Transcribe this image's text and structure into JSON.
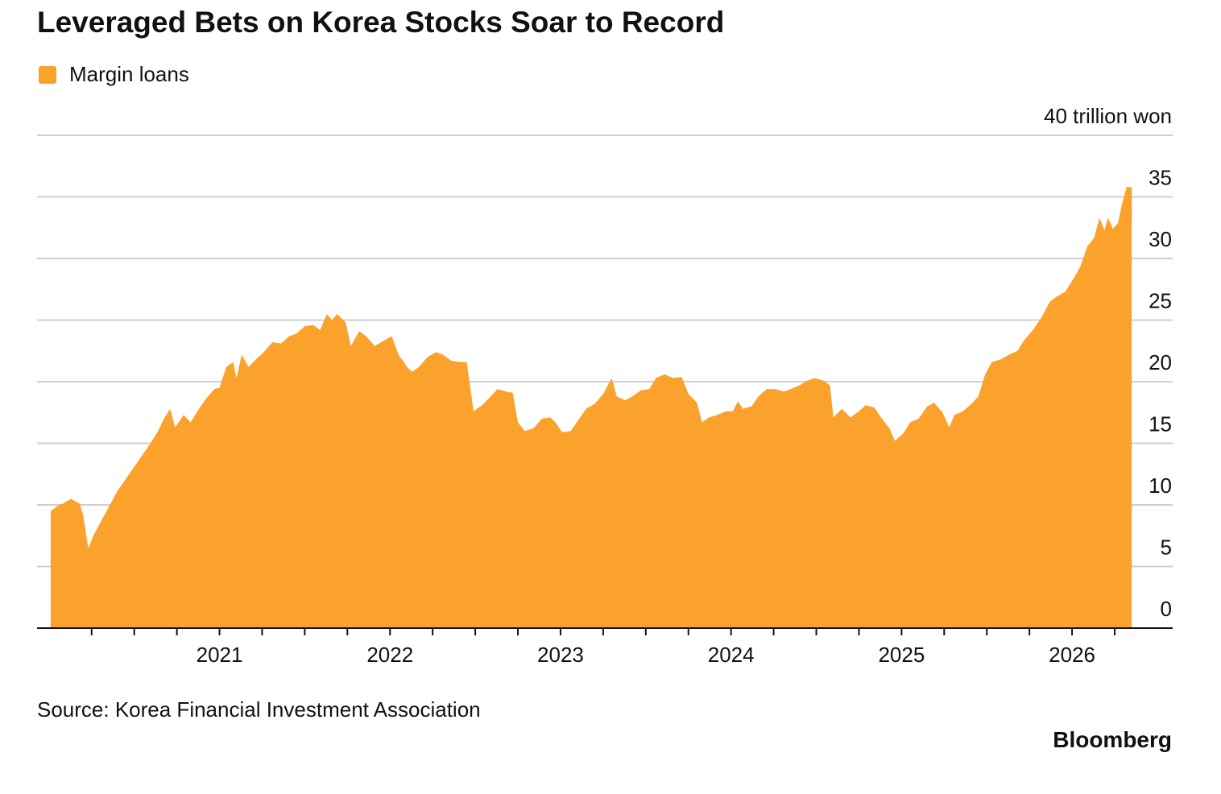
{
  "chart_data": {
    "type": "area",
    "title": "Leveraged Bets on Korea Stocks Soar to Record",
    "source": "Source: Korea Financial Investment Association",
    "brand": "Bloomberg",
    "x": [
      2020.01,
      2020.05,
      2020.08,
      2020.13,
      2020.18,
      2020.2,
      2020.23,
      2020.26,
      2020.31,
      2020.35,
      2020.4,
      2020.45,
      2020.49,
      2020.54,
      2020.59,
      2020.64,
      2020.67,
      2020.71,
      2020.74,
      2020.79,
      2020.83,
      2020.88,
      2020.92,
      2020.97,
      2021.0,
      2021.04,
      2021.08,
      2021.1,
      2021.13,
      2021.17,
      2021.22,
      2021.26,
      2021.31,
      2021.36,
      2021.41,
      2021.45,
      2021.5,
      2021.55,
      2021.59,
      2021.63,
      2021.66,
      2021.69,
      2021.74,
      2021.77,
      2021.82,
      2021.86,
      2021.91,
      2021.96,
      2022.01,
      2022.05,
      2022.1,
      2022.13,
      2022.17,
      2022.22,
      2022.27,
      2022.31,
      2022.36,
      2022.41,
      2022.45,
      2022.47,
      2022.49,
      2022.54,
      2022.59,
      2022.63,
      2022.68,
      2022.72,
      2022.75,
      2022.79,
      2022.84,
      2022.89,
      2022.94,
      2022.97,
      2023.01,
      2023.06,
      2023.11,
      2023.15,
      2023.2,
      2023.25,
      2023.3,
      2023.33,
      2023.38,
      2023.42,
      2023.47,
      2023.52,
      2023.56,
      2023.61,
      2023.66,
      2023.71,
      2023.75,
      2023.8,
      2023.83,
      2023.87,
      2023.92,
      2023.97,
      2024.01,
      2024.04,
      2024.07,
      2024.12,
      2024.16,
      2024.21,
      2024.26,
      2024.31,
      2024.35,
      2024.4,
      2024.45,
      2024.49,
      2024.54,
      2024.58,
      2024.6,
      2024.65,
      2024.7,
      2024.75,
      2024.79,
      2024.84,
      2024.89,
      2024.93,
      2024.96,
      2025.01,
      2025.05,
      2025.1,
      2025.15,
      2025.19,
      2025.24,
      2025.28,
      2025.31,
      2025.36,
      2025.41,
      2025.45,
      2025.49,
      2025.53,
      2025.58,
      2025.63,
      2025.68,
      2025.72,
      2025.77,
      2025.82,
      2025.87,
      2025.91,
      2025.96,
      2026.01,
      2026.05,
      2026.09,
      2026.13,
      2026.16,
      2026.19,
      2026.21,
      2026.24,
      2026.27,
      2026.29,
      2026.32,
      2026.35
    ],
    "series": [
      {
        "name": "Margin loans",
        "color": "#fba22c",
        "values": [
          9.5,
          9.9,
          10.1,
          10.5,
          10.1,
          9.2,
          6.5,
          7.5,
          8.8,
          9.8,
          11.1,
          12.1,
          12.9,
          13.9,
          14.9,
          16.0,
          16.9,
          17.8,
          16.3,
          17.3,
          16.7,
          17.8,
          18.6,
          19.4,
          19.5,
          21.2,
          21.6,
          20.3,
          22.2,
          21.2,
          21.9,
          22.4,
          23.2,
          23.1,
          23.7,
          23.9,
          24.5,
          24.6,
          24.2,
          25.5,
          25.0,
          25.5,
          24.8,
          22.9,
          24.1,
          23.7,
          22.9,
          23.3,
          23.7,
          22.2,
          21.2,
          20.8,
          21.2,
          22.0,
          22.4,
          22.2,
          21.7,
          21.6,
          21.6,
          19.6,
          17.6,
          18.1,
          18.8,
          19.4,
          19.2,
          19.1,
          16.7,
          16.0,
          16.2,
          17.0,
          17.1,
          16.7,
          15.9,
          16.0,
          17.0,
          17.8,
          18.2,
          19.0,
          20.3,
          18.8,
          18.5,
          18.8,
          19.3,
          19.4,
          20.3,
          20.6,
          20.3,
          20.4,
          19.0,
          18.3,
          16.7,
          17.1,
          17.3,
          17.6,
          17.6,
          18.4,
          17.8,
          18.0,
          18.8,
          19.4,
          19.4,
          19.2,
          19.4,
          19.7,
          20.1,
          20.3,
          20.1,
          19.7,
          17.1,
          17.8,
          17.1,
          17.6,
          18.1,
          17.9,
          16.9,
          16.2,
          15.2,
          15.8,
          16.7,
          17.0,
          18.0,
          18.3,
          17.5,
          16.3,
          17.3,
          17.6,
          18.2,
          18.8,
          20.6,
          21.6,
          21.8,
          22.2,
          22.5,
          23.4,
          24.2,
          25.2,
          26.5,
          26.9,
          27.3,
          28.4,
          29.4,
          31.0,
          31.7,
          33.3,
          32.3,
          33.3,
          32.4,
          32.9,
          34.3,
          35.8,
          35.8
        ]
      }
    ],
    "xlim": [
      2019.93,
      2026.59
    ],
    "xticks": [
      2021,
      2022,
      2023,
      2024,
      2025,
      2026
    ],
    "x_minor_ticks": [
      2020.25,
      2020.5,
      2020.75,
      2021.25,
      2021.5,
      2021.75,
      2022.25,
      2022.5,
      2022.75,
      2023.25,
      2023.5,
      2023.75,
      2024.25,
      2024.5,
      2024.75,
      2025.25,
      2025.5,
      2025.75,
      2026.25
    ],
    "ylim": [
      0,
      40
    ],
    "yticks": [
      0,
      5,
      10,
      15,
      20,
      25,
      30,
      35,
      {
        "value": 40,
        "label": "40 trillion won"
      }
    ],
    "grid": true
  }
}
